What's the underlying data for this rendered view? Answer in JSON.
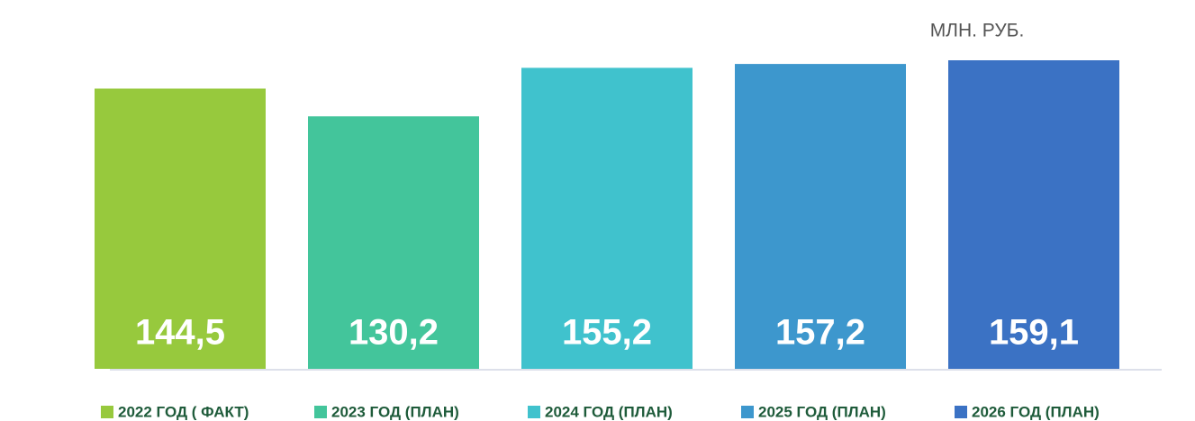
{
  "chart_data": {
    "type": "bar",
    "unit": "МЛН. РУБ.",
    "categories": [
      "2022 ГОД ( ФАКТ)",
      "2023 ГОД (ПЛАН)",
      "2024 ГОД (ПЛАН)",
      "2025 ГОД (ПЛАН)",
      "2026 ГОД (ПЛАН)"
    ],
    "values": [
      144.5,
      130.2,
      155.2,
      157.2,
      159.1
    ],
    "value_labels": [
      "144,5",
      "130,2",
      "155,2",
      "157,2",
      "159,1"
    ],
    "colors": [
      "#97c93d",
      "#43c59b",
      "#40c2cd",
      "#3d97cd",
      "#3b72c4"
    ],
    "legend": "bottom"
  }
}
